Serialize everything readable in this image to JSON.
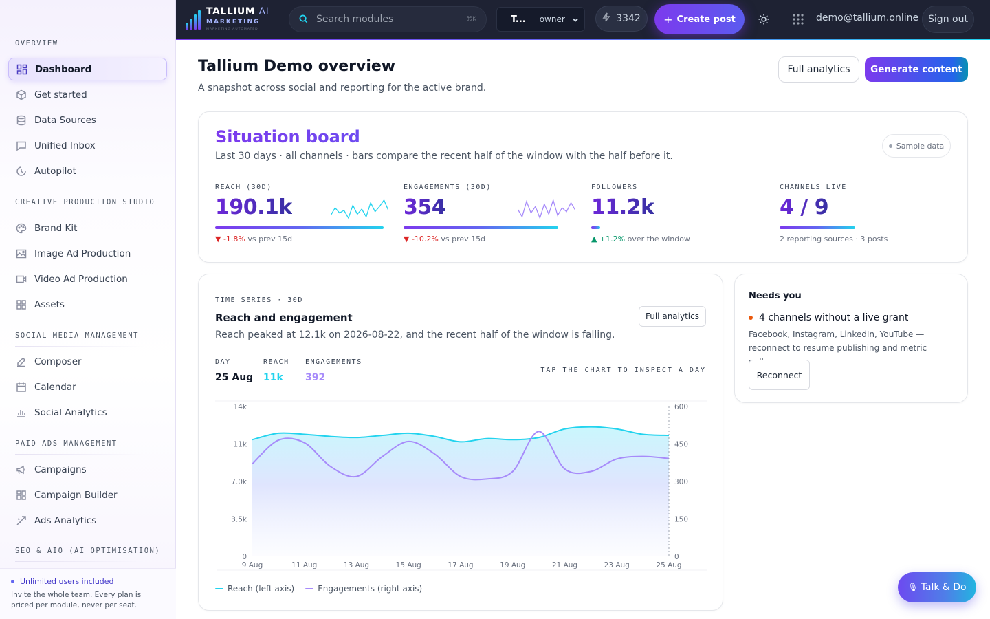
{
  "sidebar": {
    "sections": [
      {
        "title": "OVERVIEW",
        "items": [
          {
            "label": "Dashboard",
            "icon": "dashboard-icon",
            "active": true
          },
          {
            "label": "Get started",
            "icon": "cube-icon"
          },
          {
            "label": "Data Sources",
            "icon": "database-icon"
          },
          {
            "label": "Unified Inbox",
            "icon": "inbox-icon"
          },
          {
            "label": "Autopilot",
            "icon": "autopilot-icon"
          }
        ]
      },
      {
        "title": "CREATIVE PRODUCTION STUDIO",
        "items": [
          {
            "label": "Brand Kit",
            "icon": "palette-icon"
          },
          {
            "label": "Image Ad Production",
            "icon": "image-icon"
          },
          {
            "label": "Video Ad Production",
            "icon": "video-icon"
          },
          {
            "label": "Assets",
            "icon": "grid-icon"
          }
        ]
      },
      {
        "title": "SOCIAL MEDIA MANAGEMENT",
        "items": [
          {
            "label": "Composer",
            "icon": "pen-icon"
          },
          {
            "label": "Calendar",
            "icon": "calendar-icon"
          },
          {
            "label": "Social Analytics",
            "icon": "bar-chart-icon"
          }
        ]
      },
      {
        "title": "PAID ADS MANAGEMENT",
        "items": [
          {
            "label": "Campaigns",
            "icon": "megaphone-icon"
          },
          {
            "label": "Campaign Builder",
            "icon": "layout-icon"
          },
          {
            "label": "Ads Analytics",
            "icon": "trend-icon"
          }
        ]
      },
      {
        "title": "SEO & AIO (AI OPTIMISATION)",
        "items": []
      }
    ],
    "footer": {
      "title": "Unlimited users included",
      "text": "Invite the whole team. Every plan is priced per module, never per seat."
    }
  },
  "topbar": {
    "logo_name": "TALLIUM",
    "logo_ai": "AI",
    "logo_sub": "MARKETING",
    "logo_tagline": "MARKETING AUTOMATED",
    "search_placeholder": "Search modules",
    "search_shortcut": "⌘K",
    "brand_name": "T...",
    "brand_role": "owner",
    "credits": "3342",
    "create_label": "Create post",
    "user_email": "demo@tallium.online",
    "signout_label": "Sign out"
  },
  "header": {
    "title": "Tallium Demo overview",
    "subtitle": "A snapshot across social and reporting for the active brand.",
    "full_analytics_label": "Full analytics",
    "generate_label": "Generate content"
  },
  "situation": {
    "title": "Situation board",
    "subtitle": "Last 30 days · all channels · bars compare the recent half of the window with the half before it.",
    "badge": "Sample data",
    "metrics": [
      {
        "label": "REACH (30D)",
        "value": "190.1k",
        "delta": "▼ -1.8%",
        "delta_suffix": " vs prev 15d",
        "trend": "negative",
        "bar_fraction": 0.98
      },
      {
        "label": "ENGAGEMENTS (30D)",
        "value": "354",
        "delta": "▼ -10.2%",
        "delta_suffix": " vs prev 15d",
        "trend": "negative",
        "bar_fraction": 0.9
      },
      {
        "label": "FOLLOWERS",
        "value": "11.2k",
        "delta": "▲ +1.2%",
        "delta_suffix": " over the window",
        "trend": "positive",
        "bar_fraction": 0.05
      },
      {
        "label": "CHANNELS LIVE",
        "value": "4 / 9",
        "delta": "",
        "delta_suffix": "2 reporting sources · 3 posts",
        "trend": "neutral",
        "bar_fraction": 0.44
      }
    ]
  },
  "timeseries": {
    "label": "TIME SERIES · 30D",
    "title": "Reach and engagement",
    "subtitle": "Reach peaked at 12.1k on 2026-08-22, and the recent half of the window is falling.",
    "full_analytics_label": "Full analytics",
    "readout": {
      "day_label": "DAY",
      "day_value": "25 Aug",
      "reach_label": "REACH",
      "reach_value": "11k",
      "eng_label": "ENGAGEMENTS",
      "eng_value": "392"
    },
    "tap_hint": "TAP THE CHART TO INSPECT A DAY",
    "legend": {
      "reach": "Reach (left axis)",
      "engagements": "Engagements (right axis)"
    }
  },
  "chart_data": {
    "type": "area",
    "x": [
      "9 Aug",
      "10 Aug",
      "11 Aug",
      "12 Aug",
      "13 Aug",
      "14 Aug",
      "15 Aug",
      "16 Aug",
      "17 Aug",
      "18 Aug",
      "19 Aug",
      "20 Aug",
      "21 Aug",
      "22 Aug",
      "23 Aug",
      "24 Aug",
      "25 Aug"
    ],
    "x_ticks": [
      "9 Aug",
      "11 Aug",
      "13 Aug",
      "15 Aug",
      "17 Aug",
      "19 Aug",
      "21 Aug",
      "23 Aug",
      "25 Aug"
    ],
    "series": [
      {
        "name": "Reach (left axis)",
        "axis": "left",
        "color": "#22d3ee",
        "values": [
          10900,
          11500,
          11400,
          11200,
          11100,
          11300,
          11500,
          11200,
          10700,
          11000,
          10900,
          11100,
          11900,
          12100,
          11900,
          11400,
          11300
        ]
      },
      {
        "name": "Engagements (right axis)",
        "axis": "right",
        "color": "#a78bfa",
        "values": [
          370,
          465,
          455,
          360,
          320,
          400,
          460,
          410,
          320,
          310,
          340,
          500,
          350,
          340,
          390,
          400,
          392
        ]
      }
    ],
    "y_left": {
      "ticks": [
        "0",
        "3.5k",
        "7.0k",
        "11k",
        "14k"
      ],
      "min": 0,
      "max": 14000
    },
    "y_right": {
      "ticks": [
        "0",
        "150",
        "300",
        "450",
        "600"
      ],
      "min": 0,
      "max": 600
    },
    "legend_position": "bottom-left",
    "grid": false
  },
  "sparklines": {
    "reach": [
      8,
      14,
      10,
      12,
      6,
      16,
      9,
      13,
      7,
      18,
      11,
      15,
      20,
      12
    ],
    "engagements": [
      12,
      6,
      18,
      9,
      14,
      5,
      16,
      8,
      19,
      7,
      13,
      10,
      17,
      11
    ]
  },
  "needs": {
    "title": "Needs you",
    "item": "4 channels without a live grant",
    "description": "Facebook, Instagram, LinkedIn, YouTube — reconnect to resume publishing and metric pulls.",
    "button": "Reconnect"
  },
  "talk": {
    "label": "Talk & Do"
  },
  "colors": {
    "accent": "#7c3aed",
    "cyan": "#22d3ee",
    "topbar": "#1e2233",
    "negative": "#dc2626",
    "positive": "#059669"
  }
}
